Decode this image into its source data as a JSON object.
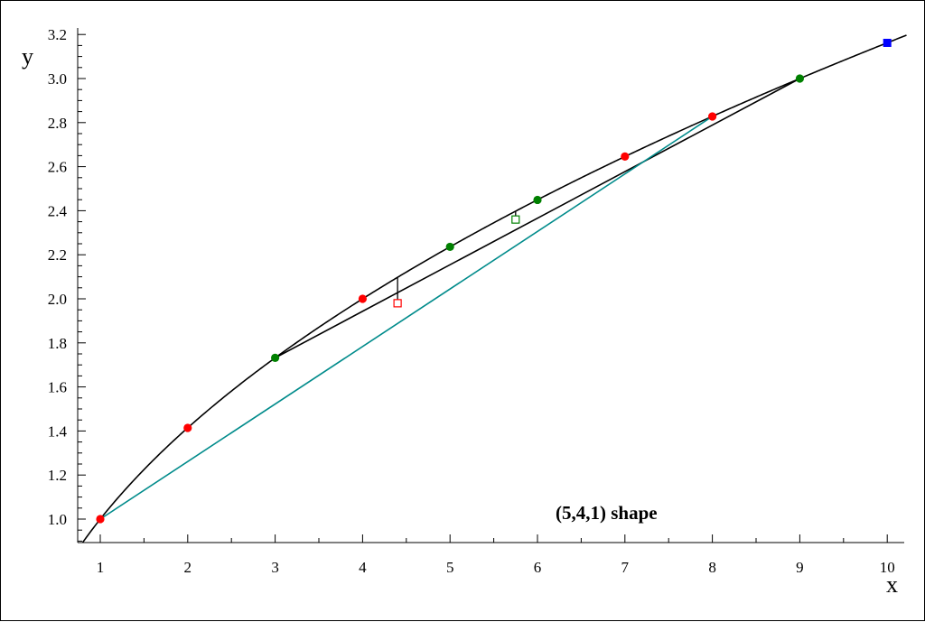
{
  "chart_data": {
    "type": "scatter",
    "title": "",
    "xlabel": "x",
    "ylabel": "y",
    "xlim": [
      0.8,
      10.2
    ],
    "ylim": [
      0.88,
      3.22
    ],
    "x_ticks": [
      1,
      2,
      3,
      4,
      5,
      6,
      7,
      8,
      9,
      10
    ],
    "x_tick_labels": [
      "1",
      "2",
      "3",
      "4",
      "5",
      "6",
      "7",
      "8",
      "9",
      "10"
    ],
    "y_ticks": [
      1.0,
      1.2,
      1.4,
      1.6,
      1.8,
      2.0,
      2.2,
      2.4,
      2.6,
      2.8,
      3.0,
      3.2
    ],
    "y_tick_labels": [
      "1.0",
      "1.2",
      "1.4",
      "1.6",
      "1.8",
      "2.0",
      "2.2",
      "2.4",
      "2.6",
      "2.8",
      "3.0",
      "3.2"
    ],
    "grid": false,
    "annotation": "(5,4,1) shape",
    "curve": {
      "name": "",
      "function": "sqrt",
      "color": "#000000"
    },
    "series": [
      {
        "marker": "circle",
        "color": "#ff0000",
        "x": [
          1,
          2,
          4,
          7,
          8
        ],
        "y": [
          1.0,
          1.414,
          2.0,
          2.646,
          2.828
        ]
      },
      {
        "marker": "circle",
        "color": "#008000",
        "x": [
          3,
          5,
          6,
          9
        ],
        "y": [
          1.732,
          2.236,
          2.449,
          3.0
        ]
      },
      {
        "marker": "square",
        "color": "#0000ff",
        "x": [
          10
        ],
        "y": [
          3.162
        ]
      }
    ],
    "lines": [
      {
        "color": "#000000",
        "x": [
          3,
          9
        ],
        "y": [
          1.732,
          3.0
        ]
      },
      {
        "color": "#008b8b",
        "x": [
          1,
          8
        ],
        "y": [
          1.0,
          2.828
        ]
      }
    ],
    "open_squares": [
      {
        "color": "#ff0000",
        "x": 4.4,
        "y": 1.98
      },
      {
        "color": "#008000",
        "x": 5.75,
        "y": 2.36
      }
    ],
    "error_segments": [
      {
        "color": "#000000",
        "x": 4.4,
        "y1": 1.98,
        "y2": 2.098
      },
      {
        "color": "#000000",
        "x": 5.75,
        "y1": 2.36,
        "y2": 2.398
      }
    ]
  }
}
